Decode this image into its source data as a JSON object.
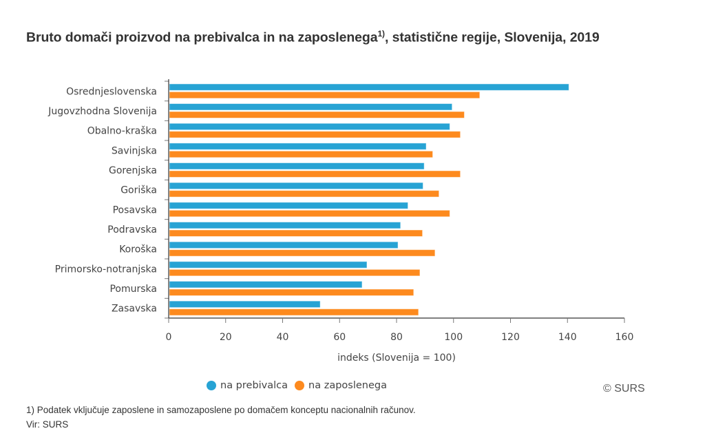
{
  "chart_data": {
    "type": "bar",
    "orientation": "horizontal",
    "title": "Bruto domači proizvod na prebivalca in na zaposlenega",
    "title_superscript": "1)",
    "title_suffix": ", statistične regije, Slovenija, 2019",
    "categories": [
      "Osrednjeslovenska",
      "Jugovzhodna Slovenija",
      "Obalno-kraška",
      "Savinjska",
      "Gorenjska",
      "Goriška",
      "Posavska",
      "Podravska",
      "Koroška",
      "Primorsko-notranjska",
      "Pomurska",
      "Zasavska"
    ],
    "series": [
      {
        "name": "na prebivalca",
        "color": "#27a3d4",
        "values": [
          140.5,
          99.5,
          98.7,
          90.4,
          89.7,
          89.3,
          84.0,
          81.4,
          80.5,
          69.6,
          67.9,
          53.2
        ]
      },
      {
        "name": "na zaposlenega",
        "color": "#fd8a1e",
        "values": [
          109.2,
          103.8,
          102.4,
          92.7,
          102.4,
          94.9,
          98.7,
          89.1,
          93.5,
          88.2,
          86.0,
          87.7
        ]
      }
    ],
    "xlabel": "indeks (Slovenija = 100)",
    "ylabel": "",
    "xlim": [
      0,
      160
    ],
    "xticks": [
      0,
      20,
      40,
      60,
      80,
      100,
      120,
      140,
      160
    ],
    "grid": false,
    "legend_position": "bottom",
    "credits": "© SURS"
  },
  "footnote": "1) Podatek vključuje zaposlene in samozaposlene po domačem konceptu nacionalnih računov.",
  "source": "Vir: SURS"
}
